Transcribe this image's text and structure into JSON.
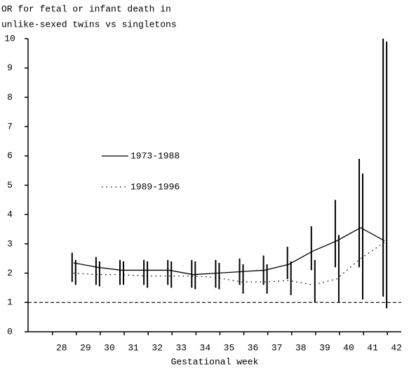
{
  "chart_data": {
    "type": "line",
    "title": [
      "OR for fetal or infant death in",
      "unlike-sexed twins vs singletons"
    ],
    "x_label": "Gestational week",
    "x": [
      28.5,
      29.5,
      30.5,
      31.5,
      32.5,
      33.5,
      34.5,
      35.5,
      36.5,
      37.5,
      38.5,
      39.5,
      40.5,
      41.5
    ],
    "series": [
      {
        "name": "1973-1988",
        "color": "#000000",
        "style": "solid",
        "values": [
          2.35,
          2.2,
          2.1,
          2.1,
          2.1,
          1.95,
          2.0,
          2.05,
          2.1,
          2.3,
          2.75,
          3.1,
          3.55,
          3.1
        ],
        "lower": [
          1.7,
          1.6,
          1.6,
          1.6,
          1.6,
          1.5,
          1.5,
          1.6,
          1.6,
          1.8,
          2.1,
          2.2,
          2.2,
          1.2
        ],
        "upper": [
          2.7,
          2.55,
          2.45,
          2.45,
          2.45,
          2.45,
          2.45,
          2.5,
          2.6,
          2.9,
          3.6,
          4.5,
          5.9,
          10
        ]
      },
      {
        "name": "1989-1996",
        "color": "#000000",
        "style": "dotted",
        "values": [
          2.0,
          1.95,
          1.95,
          1.9,
          1.9,
          1.9,
          1.85,
          1.7,
          1.7,
          1.75,
          1.6,
          1.8,
          2.5,
          3.05
        ],
        "lower": [
          1.6,
          1.55,
          1.6,
          1.5,
          1.5,
          1.45,
          1.45,
          1.3,
          1.3,
          1.25,
          1.0,
          1.0,
          1.1,
          0.8
        ],
        "upper": [
          2.45,
          2.4,
          2.4,
          2.4,
          2.4,
          2.4,
          2.35,
          2.3,
          2.3,
          2.4,
          2.45,
          3.3,
          5.4,
          9.9
        ]
      }
    ],
    "reference_line": 1,
    "xlim": [
      26.6,
      42.2
    ],
    "xticks": [
      28,
      29,
      30,
      31,
      32,
      33,
      34,
      35,
      36,
      37,
      38,
      39,
      40,
      41,
      42
    ],
    "ylim": [
      0,
      10
    ],
    "yticks": [
      0,
      1,
      2,
      3,
      4,
      5,
      6,
      7,
      8,
      9,
      10
    ],
    "legend": "center-left"
  }
}
